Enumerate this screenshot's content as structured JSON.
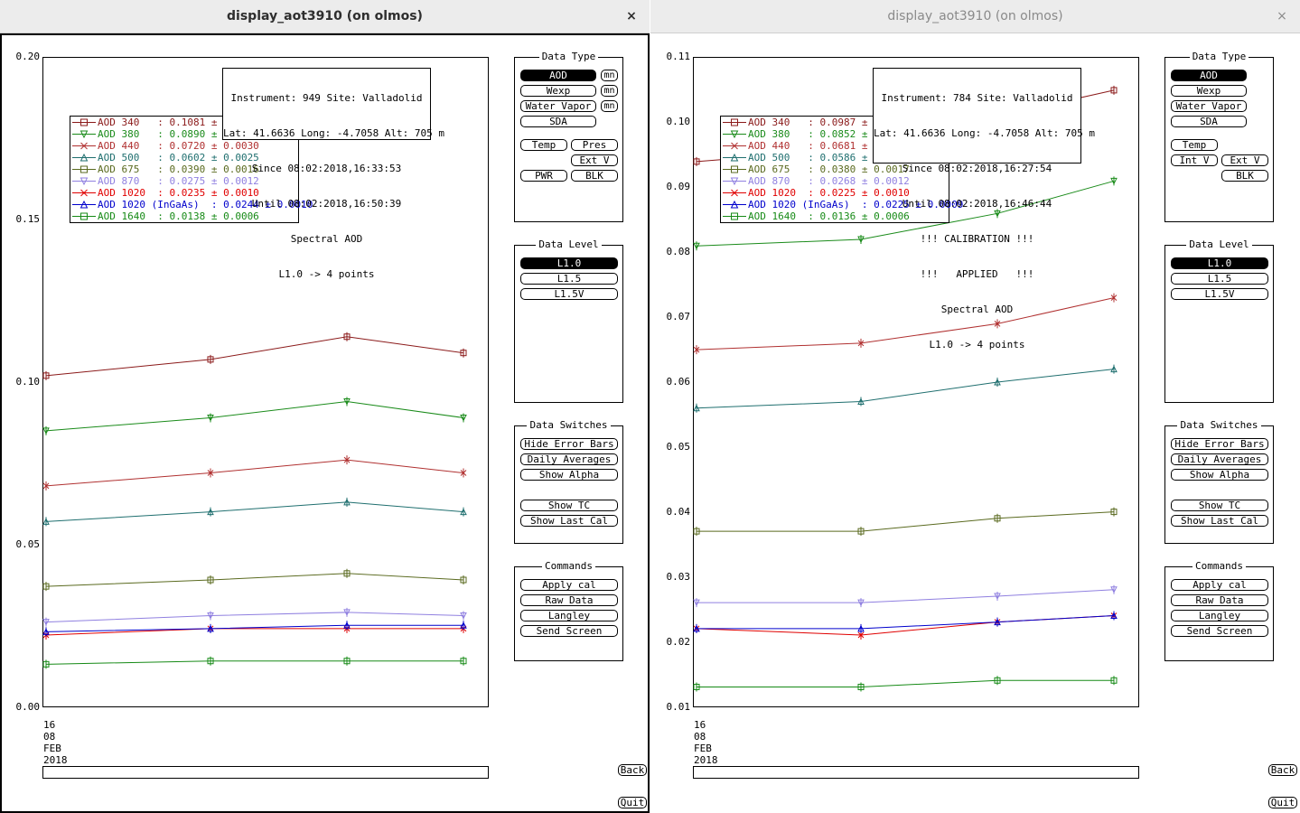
{
  "windows": [
    {
      "title": "display_aot3910 (on olmos)",
      "close_glyph": "×",
      "active": true,
      "info_lines": [
        "Instrument: 949 Site: Valladolid",
        "Lat: 41.6636 Long: -4.7058 Alt: 705 m",
        "Since 08:02:2018,16:33:53",
        "Until 08:02:2018,16:50:39",
        "Spectral AOD",
        "L1.0 -> 4 points"
      ],
      "legend": [
        {
          "label": "AOD 340   : 0.1081 ± 0.0047",
          "color": "#8b1a1a",
          "marker": "square"
        },
        {
          "label": "AOD 380   : 0.0890 ± 0.0038",
          "color": "#1a8b1a",
          "marker": "tri-down"
        },
        {
          "label": "AOD 440   : 0.0720 ± 0.0030",
          "color": "#b03030",
          "marker": "x"
        },
        {
          "label": "AOD 500   : 0.0602 ± 0.0025",
          "color": "#1f6f6f",
          "marker": "tri-up"
        },
        {
          "label": "AOD 675   : 0.0390 ± 0.0016",
          "color": "#5a6a1f",
          "marker": "square"
        },
        {
          "label": "AOD 870   : 0.0275 ± 0.0012",
          "color": "#9080e0",
          "marker": "tri-down"
        },
        {
          "label": "AOD 1020  : 0.0235 ± 0.0010",
          "color": "#e00000",
          "marker": "x"
        },
        {
          "label": "AOD 1020 (InGaAs)  : 0.0244 ± 0.0010",
          "color": "#0000cc",
          "marker": "tri-up"
        },
        {
          "label": "AOD 1640  : 0.0138 ± 0.0006",
          "color": "#168a16",
          "marker": "square"
        }
      ],
      "y_ticks": [
        "0.20",
        "0.15",
        "0.10",
        "0.05",
        "0.00"
      ],
      "date_label": [
        "16",
        "08",
        "FEB",
        "2018"
      ],
      "chart_data": {
        "type": "line",
        "x": [
          "16:33:53",
          "16:38:00",
          "16:44:00",
          "16:50:39"
        ],
        "ylim": [
          0.0,
          0.2
        ],
        "series": [
          {
            "name": "AOD 340",
            "values": [
              0.102,
              0.107,
              0.114,
              0.109
            ]
          },
          {
            "name": "AOD 380",
            "values": [
              0.085,
              0.089,
              0.094,
              0.089
            ]
          },
          {
            "name": "AOD 440",
            "values": [
              0.068,
              0.072,
              0.076,
              0.072
            ]
          },
          {
            "name": "AOD 500",
            "values": [
              0.057,
              0.06,
              0.063,
              0.06
            ]
          },
          {
            "name": "AOD 675",
            "values": [
              0.037,
              0.039,
              0.041,
              0.039
            ]
          },
          {
            "name": "AOD 870",
            "values": [
              0.026,
              0.028,
              0.029,
              0.028
            ]
          },
          {
            "name": "AOD 1020",
            "values": [
              0.022,
              0.024,
              0.024,
              0.024
            ]
          },
          {
            "name": "AOD 1020 (InGaAs)",
            "values": [
              0.023,
              0.024,
              0.025,
              0.025
            ]
          },
          {
            "name": "AOD 1640",
            "values": [
              0.013,
              0.014,
              0.014,
              0.014
            ]
          }
        ]
      },
      "data_type": {
        "title": "Data Type",
        "aod": "AOD",
        "wexp": "Wexp",
        "water_vapor": "Water Vapor",
        "sda": "SDA",
        "mn": "mn",
        "temp": "Temp",
        "pres": "Pres",
        "ext_v": "Ext V",
        "pwr": "PWR",
        "blk": "BLK"
      },
      "data_level": {
        "title": "Data Level",
        "items": [
          "L1.0",
          "L1.5",
          "L1.5V"
        ]
      },
      "data_switches": {
        "title": "Data Switches",
        "items": [
          "Hide Error Bars",
          "Daily Averages",
          "Show Alpha",
          "Show TC",
          "Show Last Cal"
        ]
      },
      "commands": {
        "title": "Commands",
        "items": [
          "Apply cal",
          "Raw Data",
          "Langley",
          "Send Screen"
        ]
      },
      "back": "Back",
      "quit": "Quit"
    },
    {
      "title": "display_aot3910 (on olmos)",
      "close_glyph": "×",
      "active": false,
      "info_lines": [
        "Instrument: 784 Site: Valladolid",
        "Lat: 41.6636 Long: -4.7058 Alt: 705 m",
        "Since 08:02:2018,16:27:54",
        "Until 08:02:2018,16:46:44",
        "!!! CALIBRATION !!!",
        "!!!   APPLIED   !!!",
        "Spectral AOD",
        "L1.0 -> 4 points"
      ],
      "legend": [
        {
          "label": "AOD 340   : 0.0987 ± 0.0042",
          "color": "#8b1a1a",
          "marker": "square"
        },
        {
          "label": "AOD 380   : 0.0852 ± 0.0036",
          "color": "#1a8b1a",
          "marker": "tri-down"
        },
        {
          "label": "AOD 440   : 0.0681 ± 0.0029",
          "color": "#b03030",
          "marker": "x"
        },
        {
          "label": "AOD 500   : 0.0586 ± 0.0025",
          "color": "#1f6f6f",
          "marker": "tri-up"
        },
        {
          "label": "AOD 675   : 0.0380 ± 0.0017",
          "color": "#5a6a1f",
          "marker": "square"
        },
        {
          "label": "AOD 870   : 0.0268 ± 0.0012",
          "color": "#9080e0",
          "marker": "tri-down"
        },
        {
          "label": "AOD 1020  : 0.0225 ± 0.0010",
          "color": "#e00000",
          "marker": "x"
        },
        {
          "label": "AOD 1020 (InGaAs)  : 0.0225 ± 0.0009",
          "color": "#0000cc",
          "marker": "tri-up"
        },
        {
          "label": "AOD 1640  : 0.0136 ± 0.0006",
          "color": "#168a16",
          "marker": "square"
        }
      ],
      "y_ticks": [
        "0.11",
        "0.10",
        "0.09",
        "0.08",
        "0.07",
        "0.06",
        "0.05",
        "0.04",
        "0.03",
        "0.02",
        "0.01"
      ],
      "date_label": [
        "16",
        "08",
        "FEB",
        "2018"
      ],
      "chart_data": {
        "type": "line",
        "x": [
          "16:27:54",
          "16:33:00",
          "16:40:00",
          "16:46:44"
        ],
        "ylim": [
          0.01,
          0.11
        ],
        "series": [
          {
            "name": "AOD 340",
            "values": [
              0.094,
              0.096,
              0.101,
              0.105
            ]
          },
          {
            "name": "AOD 380",
            "values": [
              0.081,
              0.082,
              0.086,
              0.091
            ]
          },
          {
            "name": "AOD 440",
            "values": [
              0.065,
              0.066,
              0.069,
              0.073
            ]
          },
          {
            "name": "AOD 500",
            "values": [
              0.056,
              0.057,
              0.06,
              0.062
            ]
          },
          {
            "name": "AOD 675",
            "values": [
              0.037,
              0.037,
              0.039,
              0.04
            ]
          },
          {
            "name": "AOD 870",
            "values": [
              0.026,
              0.026,
              0.027,
              0.028
            ]
          },
          {
            "name": "AOD 1020",
            "values": [
              0.022,
              0.021,
              0.023,
              0.024
            ]
          },
          {
            "name": "AOD 1020 (InGaAs)",
            "values": [
              0.022,
              0.022,
              0.023,
              0.024
            ]
          },
          {
            "name": "AOD 1640",
            "values": [
              0.013,
              0.013,
              0.014,
              0.014
            ]
          }
        ]
      },
      "data_type": {
        "title": "Data Type",
        "aod": "AOD",
        "wexp": "Wexp",
        "water_vapor": "Water Vapor",
        "sda": "SDA",
        "temp": "Temp",
        "int_v": "Int V",
        "ext_v": "Ext V",
        "blk": "BLK"
      },
      "data_level": {
        "title": "Data Level",
        "items": [
          "L1.0",
          "L1.5",
          "L1.5V"
        ]
      },
      "data_switches": {
        "title": "Data Switches",
        "items": [
          "Hide Error Bars",
          "Daily Averages",
          "Show Alpha",
          "Show TC",
          "Show Last Cal"
        ]
      },
      "commands": {
        "title": "Commands",
        "items": [
          "Apply cal",
          "Raw Data",
          "Langley",
          "Send Screen"
        ]
      },
      "back": "Back",
      "quit": "Quit"
    }
  ]
}
